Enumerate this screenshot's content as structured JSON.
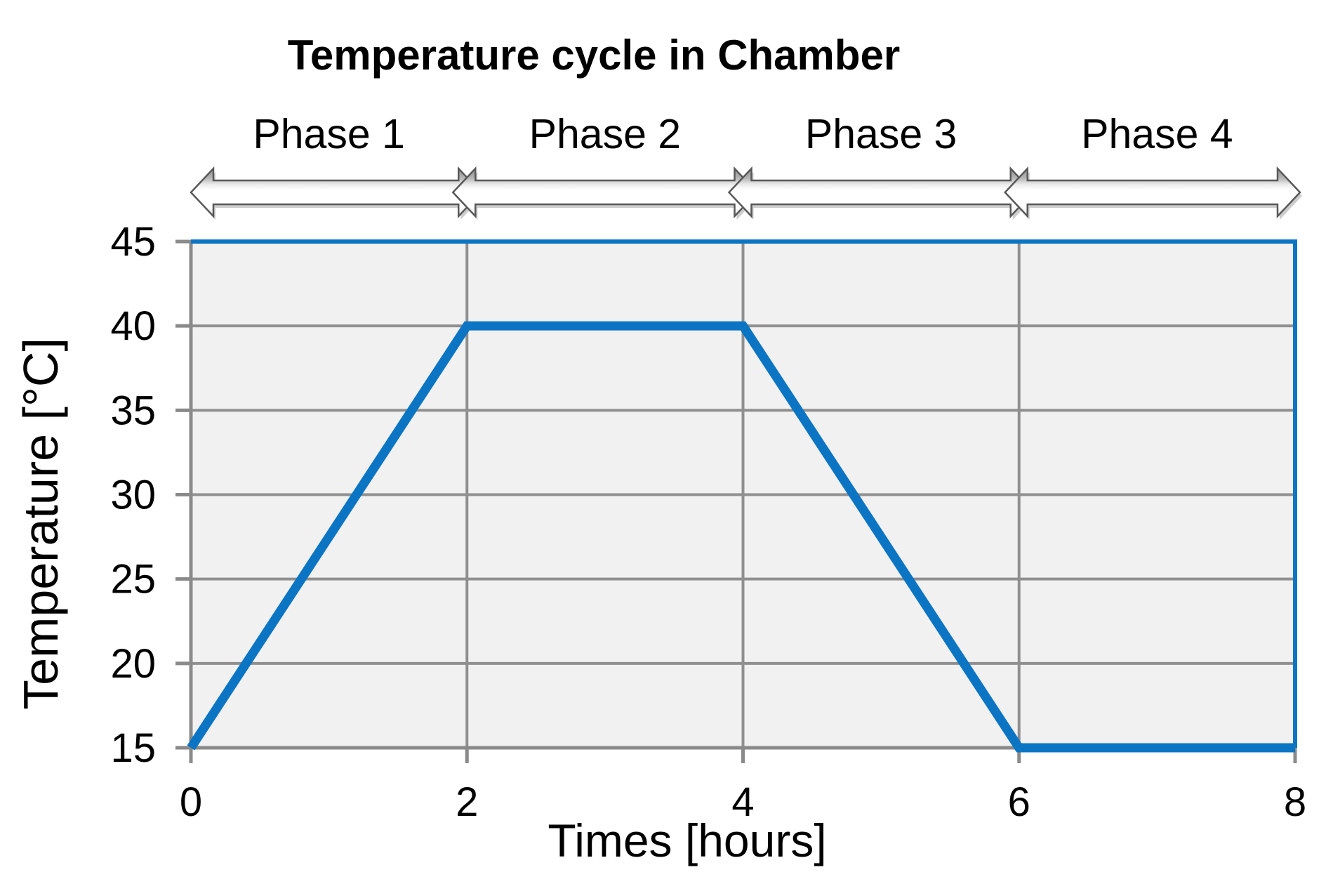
{
  "chart_data": {
    "type": "line",
    "title": "Temperature cycle in Chamber",
    "xlabel": "Times [hours]",
    "ylabel": "Temperature [°C]",
    "xlim": [
      0,
      8
    ],
    "ylim": [
      15,
      45
    ],
    "xticks": [
      0,
      2,
      4,
      6,
      8
    ],
    "yticks": [
      15,
      20,
      25,
      30,
      35,
      40,
      45
    ],
    "grid": true,
    "legend": "none",
    "series": [
      {
        "values": [
          [
            0,
            15
          ],
          [
            2,
            40
          ],
          [
            4,
            40
          ],
          [
            6,
            15
          ],
          [
            8,
            15
          ]
        ]
      }
    ],
    "phases": [
      {
        "label": "Phase 1",
        "from": 0,
        "to": 2
      },
      {
        "label": "Phase 2",
        "from": 2,
        "to": 4
      },
      {
        "label": "Phase 3",
        "from": 4,
        "to": 6
      },
      {
        "label": "Phase 4",
        "from": 6,
        "to": 8
      }
    ],
    "colors": {
      "line": "#0b75c4",
      "plot_border": "#0b75c4",
      "plot_background": "#f1f1f1",
      "gridline": "#8f8f8f",
      "axis": "#8a8a8a",
      "text": "#000000",
      "arrow_outline": "#595959",
      "arrow_fill": "#ffffff",
      "arrow_shadow": "#cdcdcd"
    }
  }
}
